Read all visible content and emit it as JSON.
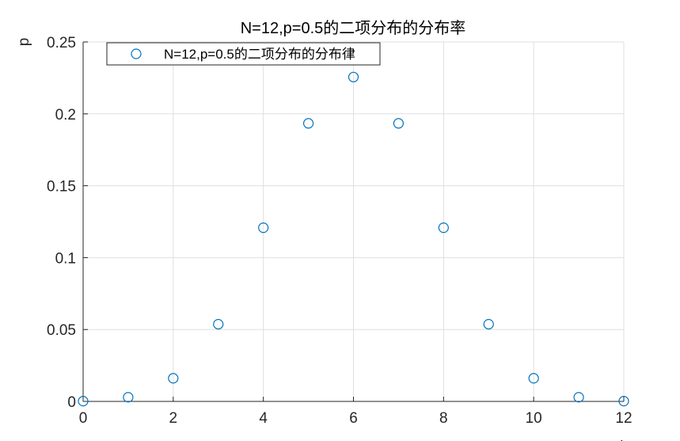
{
  "chart_data": {
    "type": "scatter",
    "title": "N=12,p=0.5的二项分布的分布率",
    "xlabel": "k",
    "ylabel": "p",
    "xlim": [
      0,
      12
    ],
    "ylim": [
      0,
      0.25
    ],
    "xticks": [
      0,
      2,
      4,
      6,
      8,
      10,
      12
    ],
    "yticks": [
      0,
      0.05,
      0.1,
      0.15,
      0.2,
      0.25
    ],
    "xtick_labels": [
      "0",
      "2",
      "4",
      "6",
      "8",
      "10",
      "12"
    ],
    "ytick_labels": [
      "0",
      "0.05",
      "0.1",
      "0.15",
      "0.2",
      "0.25"
    ],
    "grid": true,
    "legend_position": "top-left",
    "marker": "circle-open",
    "series": [
      {
        "name": "N=12,p=0.5的二项分布的分布律",
        "color": "#0072BD",
        "x": [
          0,
          1,
          2,
          3,
          4,
          5,
          6,
          7,
          8,
          9,
          10,
          11,
          12
        ],
        "y": [
          0.0002,
          0.0029,
          0.0161,
          0.0537,
          0.1208,
          0.1934,
          0.2256,
          0.1934,
          0.1208,
          0.0537,
          0.0161,
          0.0029,
          0.0002
        ]
      }
    ]
  }
}
